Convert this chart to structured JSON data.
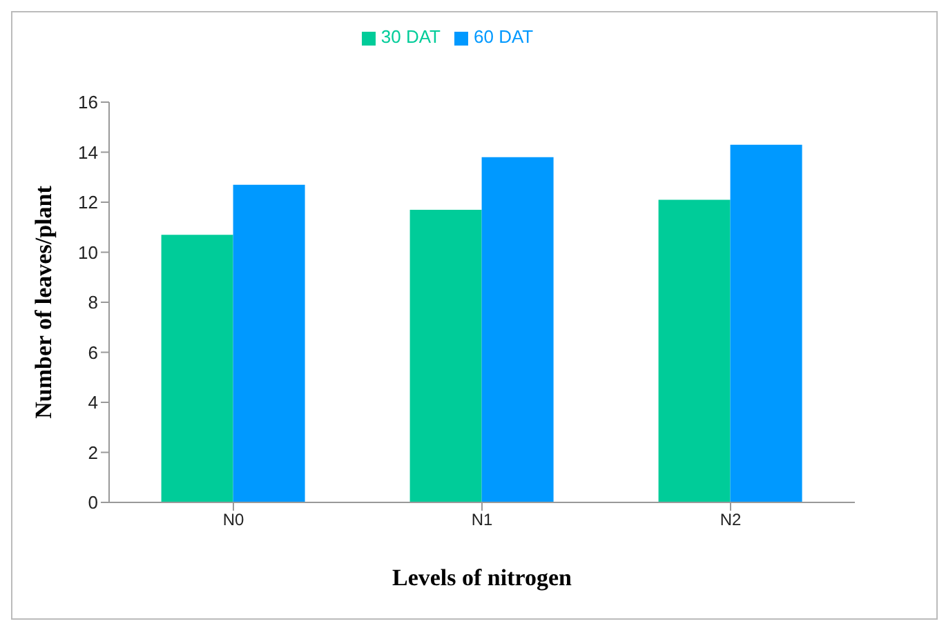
{
  "chart_data": {
    "type": "bar",
    "xlabel": "Levels of nitrogen",
    "ylabel": "Number of leaves/plant",
    "categories": [
      "N0",
      "N1",
      "N2"
    ],
    "series": [
      {
        "name": "30 DAT",
        "color": "#00cc99",
        "values": [
          10.7,
          11.7,
          12.1
        ]
      },
      {
        "name": "60 DAT",
        "color": "#0099ff",
        "values": [
          12.7,
          13.8,
          14.3
        ]
      }
    ],
    "ylim": [
      0,
      16
    ],
    "yticks": [
      0,
      2,
      4,
      6,
      8,
      10,
      12,
      14,
      16
    ],
    "legend": "top",
    "grid": false
  }
}
